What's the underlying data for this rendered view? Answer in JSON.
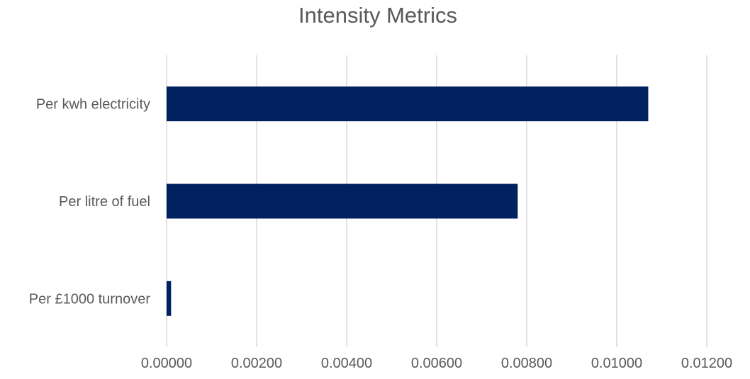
{
  "chart_data": {
    "type": "bar",
    "orientation": "horizontal",
    "title": "Intensity Metrics",
    "categories": [
      "Per kwh electricity",
      "Per litre of fuel",
      "Per £1000 turnover"
    ],
    "values": [
      0.0107,
      0.0078,
      0.0001
    ],
    "xlim": [
      0,
      0.012
    ],
    "xticks": [
      "0.00000",
      "0.00200",
      "0.00400",
      "0.00600",
      "0.00800",
      "0.01000",
      "0.01200"
    ],
    "xtick_values": [
      0,
      0.002,
      0.004,
      0.006,
      0.008,
      0.01,
      0.012
    ],
    "grid": "vertical",
    "legend": "none",
    "bar_color": "#002060",
    "grid_color": "#d9d9d9",
    "text_color": "#595959"
  }
}
